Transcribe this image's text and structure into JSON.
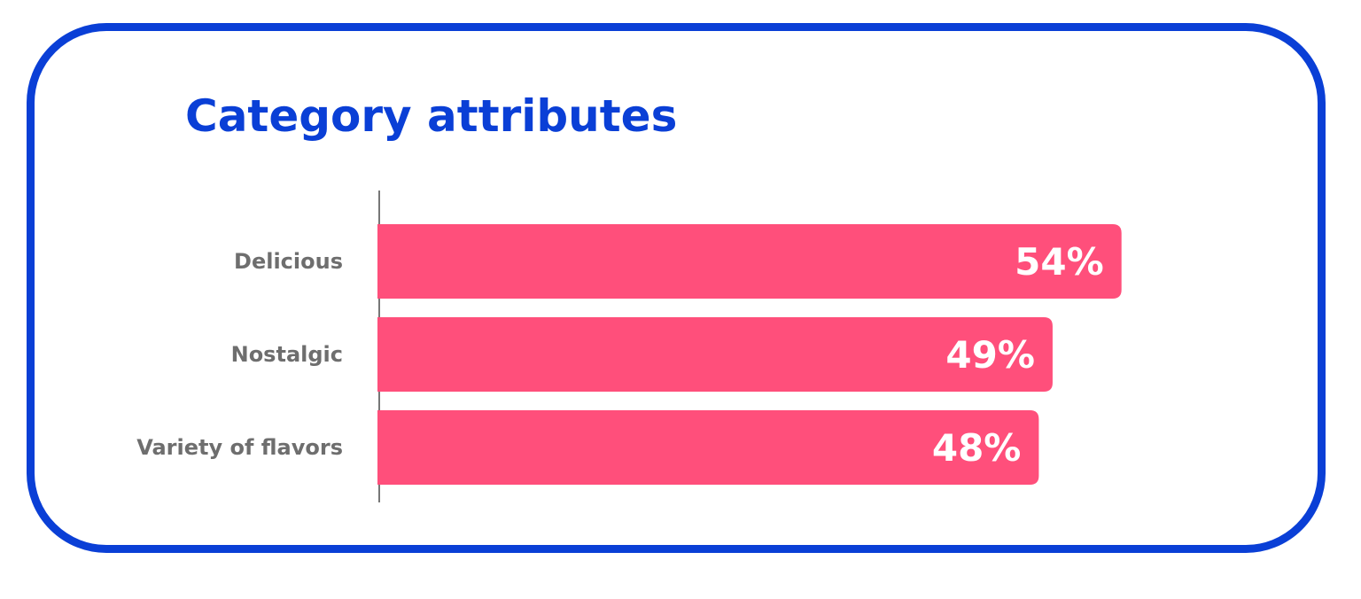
{
  "colors": {
    "accent": "#0a3fd6",
    "bar": "#ff4f7b",
    "label": "#6e6e6e",
    "value_text": "#ffffff"
  },
  "chart_data": {
    "type": "bar",
    "orientation": "horizontal",
    "title": "Category attributes",
    "categories": [
      "Delicious",
      "Nostalgic",
      "Variety of flavors"
    ],
    "values": [
      54,
      49,
      48
    ],
    "value_labels": [
      "54%",
      "49%",
      "48%"
    ],
    "xlabel": "",
    "ylabel": "",
    "grid": false,
    "legend": "none"
  }
}
